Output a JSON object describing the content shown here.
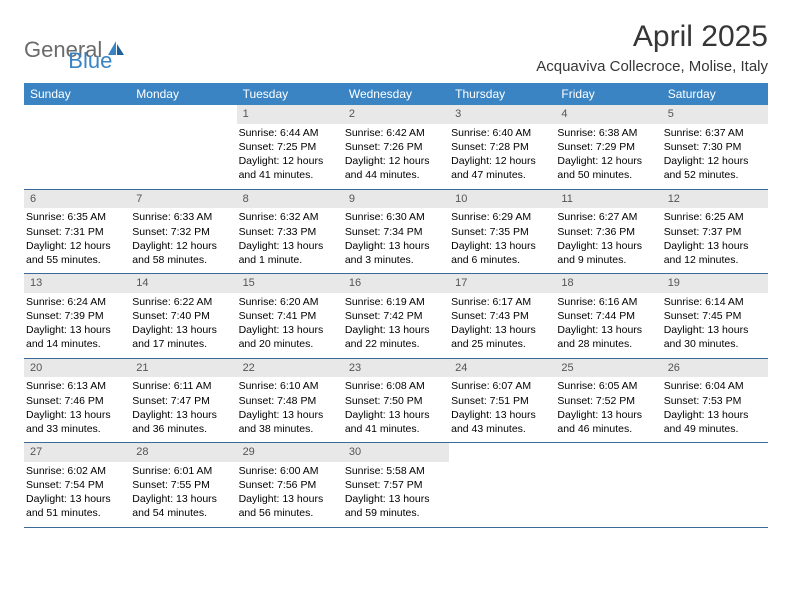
{
  "logo": {
    "text1": "General",
    "text2": "Blue"
  },
  "title": "April 2025",
  "location": "Acquaviva Collecroce, Molise, Italy",
  "colors": {
    "header_bg": "#3a84c4",
    "header_text": "#ffffff",
    "daynum_bg": "#e8e8e8",
    "daynum_text": "#555555",
    "rule": "#3a6a9a",
    "body_text": "#000000",
    "logo_gray": "#6b6b6b",
    "logo_blue": "#3a84c4",
    "title_color": "#363636"
  },
  "day_headers": [
    "Sunday",
    "Monday",
    "Tuesday",
    "Wednesday",
    "Thursday",
    "Friday",
    "Saturday"
  ],
  "weeks": [
    [
      {
        "day": "",
        "lines": []
      },
      {
        "day": "",
        "lines": []
      },
      {
        "day": "1",
        "lines": [
          "Sunrise: 6:44 AM",
          "Sunset: 7:25 PM",
          "Daylight: 12 hours",
          "and 41 minutes."
        ]
      },
      {
        "day": "2",
        "lines": [
          "Sunrise: 6:42 AM",
          "Sunset: 7:26 PM",
          "Daylight: 12 hours",
          "and 44 minutes."
        ]
      },
      {
        "day": "3",
        "lines": [
          "Sunrise: 6:40 AM",
          "Sunset: 7:28 PM",
          "Daylight: 12 hours",
          "and 47 minutes."
        ]
      },
      {
        "day": "4",
        "lines": [
          "Sunrise: 6:38 AM",
          "Sunset: 7:29 PM",
          "Daylight: 12 hours",
          "and 50 minutes."
        ]
      },
      {
        "day": "5",
        "lines": [
          "Sunrise: 6:37 AM",
          "Sunset: 7:30 PM",
          "Daylight: 12 hours",
          "and 52 minutes."
        ]
      }
    ],
    [
      {
        "day": "6",
        "lines": [
          "Sunrise: 6:35 AM",
          "Sunset: 7:31 PM",
          "Daylight: 12 hours",
          "and 55 minutes."
        ]
      },
      {
        "day": "7",
        "lines": [
          "Sunrise: 6:33 AM",
          "Sunset: 7:32 PM",
          "Daylight: 12 hours",
          "and 58 minutes."
        ]
      },
      {
        "day": "8",
        "lines": [
          "Sunrise: 6:32 AM",
          "Sunset: 7:33 PM",
          "Daylight: 13 hours",
          "and 1 minute."
        ]
      },
      {
        "day": "9",
        "lines": [
          "Sunrise: 6:30 AM",
          "Sunset: 7:34 PM",
          "Daylight: 13 hours",
          "and 3 minutes."
        ]
      },
      {
        "day": "10",
        "lines": [
          "Sunrise: 6:29 AM",
          "Sunset: 7:35 PM",
          "Daylight: 13 hours",
          "and 6 minutes."
        ]
      },
      {
        "day": "11",
        "lines": [
          "Sunrise: 6:27 AM",
          "Sunset: 7:36 PM",
          "Daylight: 13 hours",
          "and 9 minutes."
        ]
      },
      {
        "day": "12",
        "lines": [
          "Sunrise: 6:25 AM",
          "Sunset: 7:37 PM",
          "Daylight: 13 hours",
          "and 12 minutes."
        ]
      }
    ],
    [
      {
        "day": "13",
        "lines": [
          "Sunrise: 6:24 AM",
          "Sunset: 7:39 PM",
          "Daylight: 13 hours",
          "and 14 minutes."
        ]
      },
      {
        "day": "14",
        "lines": [
          "Sunrise: 6:22 AM",
          "Sunset: 7:40 PM",
          "Daylight: 13 hours",
          "and 17 minutes."
        ]
      },
      {
        "day": "15",
        "lines": [
          "Sunrise: 6:20 AM",
          "Sunset: 7:41 PM",
          "Daylight: 13 hours",
          "and 20 minutes."
        ]
      },
      {
        "day": "16",
        "lines": [
          "Sunrise: 6:19 AM",
          "Sunset: 7:42 PM",
          "Daylight: 13 hours",
          "and 22 minutes."
        ]
      },
      {
        "day": "17",
        "lines": [
          "Sunrise: 6:17 AM",
          "Sunset: 7:43 PM",
          "Daylight: 13 hours",
          "and 25 minutes."
        ]
      },
      {
        "day": "18",
        "lines": [
          "Sunrise: 6:16 AM",
          "Sunset: 7:44 PM",
          "Daylight: 13 hours",
          "and 28 minutes."
        ]
      },
      {
        "day": "19",
        "lines": [
          "Sunrise: 6:14 AM",
          "Sunset: 7:45 PM",
          "Daylight: 13 hours",
          "and 30 minutes."
        ]
      }
    ],
    [
      {
        "day": "20",
        "lines": [
          "Sunrise: 6:13 AM",
          "Sunset: 7:46 PM",
          "Daylight: 13 hours",
          "and 33 minutes."
        ]
      },
      {
        "day": "21",
        "lines": [
          "Sunrise: 6:11 AM",
          "Sunset: 7:47 PM",
          "Daylight: 13 hours",
          "and 36 minutes."
        ]
      },
      {
        "day": "22",
        "lines": [
          "Sunrise: 6:10 AM",
          "Sunset: 7:48 PM",
          "Daylight: 13 hours",
          "and 38 minutes."
        ]
      },
      {
        "day": "23",
        "lines": [
          "Sunrise: 6:08 AM",
          "Sunset: 7:50 PM",
          "Daylight: 13 hours",
          "and 41 minutes."
        ]
      },
      {
        "day": "24",
        "lines": [
          "Sunrise: 6:07 AM",
          "Sunset: 7:51 PM",
          "Daylight: 13 hours",
          "and 43 minutes."
        ]
      },
      {
        "day": "25",
        "lines": [
          "Sunrise: 6:05 AM",
          "Sunset: 7:52 PM",
          "Daylight: 13 hours",
          "and 46 minutes."
        ]
      },
      {
        "day": "26",
        "lines": [
          "Sunrise: 6:04 AM",
          "Sunset: 7:53 PM",
          "Daylight: 13 hours",
          "and 49 minutes."
        ]
      }
    ],
    [
      {
        "day": "27",
        "lines": [
          "Sunrise: 6:02 AM",
          "Sunset: 7:54 PM",
          "Daylight: 13 hours",
          "and 51 minutes."
        ]
      },
      {
        "day": "28",
        "lines": [
          "Sunrise: 6:01 AM",
          "Sunset: 7:55 PM",
          "Daylight: 13 hours",
          "and 54 minutes."
        ]
      },
      {
        "day": "29",
        "lines": [
          "Sunrise: 6:00 AM",
          "Sunset: 7:56 PM",
          "Daylight: 13 hours",
          "and 56 minutes."
        ]
      },
      {
        "day": "30",
        "lines": [
          "Sunrise: 5:58 AM",
          "Sunset: 7:57 PM",
          "Daylight: 13 hours",
          "and 59 minutes."
        ]
      },
      {
        "day": "",
        "lines": []
      },
      {
        "day": "",
        "lines": []
      },
      {
        "day": "",
        "lines": []
      }
    ]
  ]
}
